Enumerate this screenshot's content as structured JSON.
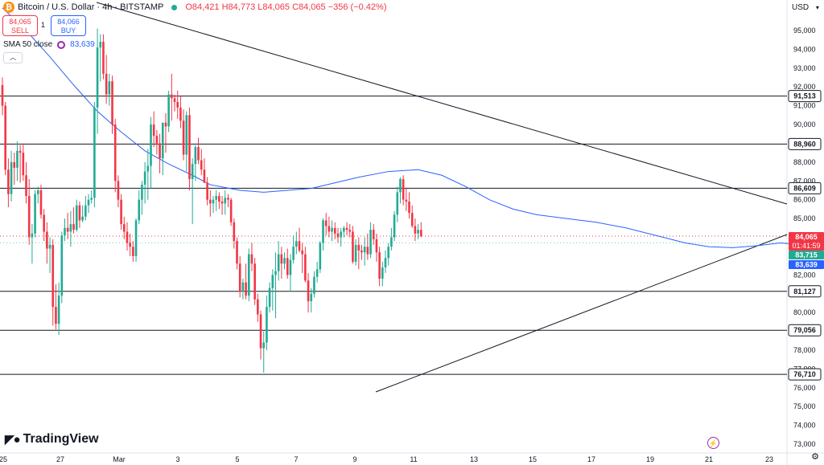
{
  "header": {
    "logo": "₿",
    "symbol": "Bitcoin / U.S. Dollar · 4h · BITSTAMP",
    "ohlc": "O84,421  H84,773  L84,065  C84,065  −356 (−0.42%)"
  },
  "trade": {
    "sell_price": "84,065",
    "sell_label": "SELL",
    "spread": "1",
    "buy_price": "84,066",
    "buy_label": "BUY"
  },
  "indicator": {
    "name": "SMA 50 close",
    "value": "83,639"
  },
  "currency": "USD",
  "brand": "TradingView",
  "icons": {
    "currency_menu": "chevron-down-icon",
    "settings": "gear-icon",
    "bolt": "lightning-icon",
    "collapse": "chevron-up-icon"
  },
  "colors": {
    "up": "#22ab94",
    "down": "#f23645",
    "sma": "#2962ff",
    "last_price": "#f23645",
    "sma_tag": "#2962ff",
    "green_tag": "#22ab94"
  },
  "chart_data": {
    "type": "candlestick",
    "ylim": [
      72600,
      96400
    ],
    "y_ticks": [
      73000,
      74000,
      75000,
      76000,
      77000,
      78000,
      79000,
      80000,
      81000,
      82000,
      83000,
      84000,
      85000,
      86000,
      87000,
      88000,
      89000,
      90000,
      91000,
      92000,
      93000,
      94000,
      95000
    ],
    "x_ticks": [
      "25",
      "27",
      "Mar",
      "3",
      "5",
      "7",
      "9",
      "11",
      "13",
      "15",
      "17",
      "19",
      "21",
      "23"
    ],
    "horizontal_levels": [
      {
        "value": 91513,
        "label": "91,513"
      },
      {
        "value": 88960,
        "label": "88,960"
      },
      {
        "value": 86609,
        "label": "86,609"
      },
      {
        "value": 81127,
        "label": "81,127"
      },
      {
        "value": 79056,
        "label": "79,056"
      },
      {
        "value": 76710,
        "label": "76,710"
      }
    ],
    "price_tags": [
      {
        "value": 84065,
        "label": "84,065",
        "sub": "01:41:59",
        "color": "#f23645"
      },
      {
        "value": 83715,
        "label": "83,715",
        "color": "#22ab94"
      },
      {
        "value": 83639,
        "label": "83,639",
        "color": "#2962ff"
      }
    ],
    "candles": [
      [
        92100,
        92500,
        90500,
        91000
      ],
      [
        91000,
        91200,
        87300,
        87600
      ],
      [
        87600,
        88200,
        85600,
        86300
      ],
      [
        86300,
        88600,
        85900,
        88000
      ],
      [
        88000,
        88500,
        86800,
        87700
      ],
      [
        87700,
        89100,
        87000,
        88600
      ],
      [
        88600,
        88900,
        86900,
        88500
      ],
      [
        88500,
        89000,
        87000,
        87300
      ],
      [
        87300,
        88000,
        85800,
        86200
      ],
      [
        86200,
        87100,
        83600,
        84000
      ],
      [
        84000,
        84700,
        82600,
        84200
      ],
      [
        84200,
        86500,
        84000,
        86300
      ],
      [
        86300,
        86700,
        85800,
        86500
      ],
      [
        86500,
        86800,
        85000,
        85200
      ],
      [
        85200,
        85500,
        83800,
        84300
      ],
      [
        84300,
        84800,
        82600,
        83400
      ],
      [
        83400,
        84000,
        82100,
        83600
      ],
      [
        83600,
        83900,
        79300,
        80300
      ],
      [
        80300,
        81500,
        79100,
        79400
      ],
      [
        79400,
        81600,
        78800,
        80900
      ],
      [
        80900,
        84300,
        80500,
        84100
      ],
      [
        84100,
        85000,
        83800,
        84500
      ],
      [
        84500,
        85300,
        83900,
        84300
      ],
      [
        84300,
        85400,
        83500,
        84700
      ],
      [
        84700,
        85600,
        84200,
        84400
      ],
      [
        84400,
        86000,
        84300,
        85700
      ],
      [
        85700,
        85900,
        84500,
        84900
      ],
      [
        84900,
        85700,
        84800,
        85100
      ],
      [
        85100,
        86200,
        84900,
        85700
      ],
      [
        85700,
        86300,
        85300,
        86000
      ],
      [
        86000,
        86500,
        85800,
        86100
      ],
      [
        86100,
        91200,
        85600,
        90900
      ],
      [
        90900,
        95100,
        89500,
        94100
      ],
      [
        94100,
        94800,
        92300,
        94400
      ],
      [
        94400,
        94800,
        92400,
        92700
      ],
      [
        92700,
        93700,
        91100,
        91600
      ],
      [
        91600,
        92700,
        91000,
        92300
      ],
      [
        92300,
        92600,
        89500,
        90000
      ],
      [
        90000,
        90300,
        86400,
        87000
      ],
      [
        87000,
        87300,
        85600,
        86000
      ],
      [
        86000,
        86300,
        84400,
        84700
      ],
      [
        84700,
        85100,
        83900,
        84300
      ],
      [
        84300,
        84800,
        83300,
        83700
      ],
      [
        83700,
        84200,
        83000,
        83500
      ],
      [
        83500,
        83800,
        82700,
        83000
      ],
      [
        83000,
        85000,
        82700,
        84900
      ],
      [
        84900,
        86500,
        84700,
        86000
      ],
      [
        86000,
        87000,
        85200,
        86800
      ],
      [
        86800,
        88000,
        85800,
        87500
      ],
      [
        87500,
        88700,
        86000,
        87800
      ],
      [
        87800,
        90400,
        86600,
        90000
      ],
      [
        90000,
        90700,
        88800,
        89400
      ],
      [
        89400,
        89700,
        88400,
        89000
      ],
      [
        89000,
        89500,
        87400,
        88200
      ],
      [
        88200,
        90100,
        87300,
        90100
      ],
      [
        90100,
        90600,
        88500,
        89900
      ],
      [
        89900,
        91800,
        89600,
        91600
      ],
      [
        91600,
        92700,
        90200,
        91400
      ],
      [
        91400,
        91600,
        90700,
        91200
      ],
      [
        91200,
        91800,
        90300,
        90900
      ],
      [
        90900,
        91500,
        89800,
        90200
      ],
      [
        90200,
        90800,
        88100,
        88400
      ],
      [
        88400,
        90700,
        87500,
        90500
      ],
      [
        90500,
        90900,
        86500,
        87100
      ],
      [
        87100,
        88200,
        84700,
        87900
      ],
      [
        87900,
        88900,
        87000,
        88800
      ],
      [
        88800,
        89300,
        87900,
        88100
      ],
      [
        88100,
        88700,
        87300,
        87600
      ],
      [
        87600,
        88200,
        86900,
        86900
      ],
      [
        86900,
        87200,
        85700,
        86000
      ],
      [
        86000,
        86500,
        85100,
        85800
      ],
      [
        85800,
        86200,
        85300,
        86000
      ],
      [
        86000,
        86500,
        85400,
        86200
      ],
      [
        86200,
        86400,
        85500,
        85900
      ],
      [
        85900,
        86200,
        85200,
        85800
      ],
      [
        85800,
        86500,
        85200,
        86100
      ],
      [
        86100,
        86300,
        85600,
        86000
      ],
      [
        86000,
        86100,
        84600,
        84800
      ],
      [
        84800,
        85000,
        83400,
        83800
      ],
      [
        83800,
        84000,
        82300,
        82600
      ],
      [
        82600,
        83000,
        80800,
        81100
      ],
      [
        81100,
        81800,
        80700,
        81600
      ],
      [
        81600,
        82600,
        80700,
        80900
      ],
      [
        80900,
        83400,
        80600,
        83100
      ],
      [
        83100,
        83700,
        82200,
        82600
      ],
      [
        82600,
        82900,
        80400,
        80700
      ],
      [
        80700,
        81000,
        79500,
        79900
      ],
      [
        79900,
        80100,
        77500,
        78100
      ],
      [
        78100,
        79000,
        76800,
        78400
      ],
      [
        78400,
        80900,
        78000,
        80300
      ],
      [
        80300,
        81600,
        80000,
        81300
      ],
      [
        81300,
        82300,
        80100,
        82000
      ],
      [
        82000,
        83200,
        79700,
        82200
      ],
      [
        82200,
        83800,
        81700,
        83100
      ],
      [
        83100,
        83500,
        81800,
        82600
      ],
      [
        82600,
        83200,
        82300,
        82900
      ],
      [
        82900,
        83400,
        81800,
        82000
      ],
      [
        82000,
        83100,
        81100,
        82800
      ],
      [
        82800,
        84100,
        82600,
        83500
      ],
      [
        83500,
        84300,
        83100,
        83800
      ],
      [
        83800,
        84500,
        83200,
        83300
      ],
      [
        83300,
        83700,
        82100,
        83100
      ],
      [
        83100,
        83500,
        81600,
        81700
      ],
      [
        81700,
        82100,
        80000,
        80600
      ],
      [
        80600,
        81300,
        80000,
        81000
      ],
      [
        81000,
        82200,
        80800,
        81900
      ],
      [
        81900,
        82700,
        81600,
        82300
      ],
      [
        82300,
        83800,
        82100,
        83700
      ],
      [
        83700,
        85000,
        83300,
        84900
      ],
      [
        84900,
        85300,
        84100,
        84600
      ],
      [
        84600,
        85100,
        84000,
        84300
      ],
      [
        84300,
        84900,
        83800,
        84500
      ],
      [
        84500,
        84800,
        83900,
        84200
      ],
      [
        84200,
        84500,
        83700,
        84000
      ],
      [
        84000,
        84500,
        83500,
        84300
      ],
      [
        84300,
        84600,
        84000,
        84500
      ],
      [
        84500,
        84800,
        84100,
        84400
      ],
      [
        84400,
        84700,
        84000,
        84300
      ],
      [
        84300,
        84600,
        82600,
        82700
      ],
      [
        82700,
        83900,
        82500,
        83600
      ],
      [
        83600,
        84000,
        82300,
        83300
      ],
      [
        83300,
        83600,
        82800,
        83200
      ],
      [
        83200,
        84000,
        82500,
        83500
      ],
      [
        83500,
        84200,
        82800,
        83100
      ],
      [
        83100,
        84800,
        82900,
        84400
      ],
      [
        84400,
        84700,
        83600,
        83900
      ],
      [
        83900,
        84200,
        82700,
        83200
      ],
      [
        83200,
        83500,
        81400,
        81800
      ],
      [
        81800,
        82700,
        81400,
        82400
      ],
      [
        82400,
        83300,
        82100,
        82900
      ],
      [
        82900,
        83700,
        82500,
        83500
      ],
      [
        83500,
        84500,
        83300,
        84000
      ],
      [
        84000,
        85400,
        83800,
        85200
      ],
      [
        85200,
        86700,
        84800,
        86400
      ],
      [
        86400,
        87200,
        85800,
        87100
      ],
      [
        87100,
        87300,
        85700,
        86000
      ],
      [
        86000,
        86600,
        85400,
        85900
      ],
      [
        85900,
        86400,
        85000,
        85300
      ],
      [
        85300,
        85700,
        84500,
        84600
      ],
      [
        84600,
        85000,
        83800,
        84200
      ],
      [
        84200,
        84700,
        83900,
        84400
      ],
      [
        84400,
        84800,
        84000,
        84065
      ]
    ],
    "sma50": [
      [
        0,
        96200
      ],
      [
        8,
        95000
      ],
      [
        16,
        93600
      ],
      [
        24,
        92100
      ],
      [
        32,
        90700
      ],
      [
        40,
        89600
      ],
      [
        48,
        88600
      ],
      [
        56,
        87900
      ],
      [
        64,
        87300
      ],
      [
        70,
        86800
      ],
      [
        80,
        86500
      ],
      [
        88,
        86400
      ],
      [
        96,
        86500
      ],
      [
        104,
        86600
      ],
      [
        112,
        86900
      ],
      [
        120,
        87200
      ],
      [
        130,
        87500
      ],
      [
        140,
        87600
      ],
      [
        148,
        87300
      ],
      [
        156,
        86700
      ],
      [
        164,
        86000
      ],
      [
        172,
        85500
      ],
      [
        180,
        85200
      ],
      [
        190,
        85000
      ],
      [
        200,
        84800
      ],
      [
        210,
        84500
      ],
      [
        220,
        84100
      ],
      [
        230,
        83700
      ],
      [
        238,
        83500
      ],
      [
        246,
        83450
      ],
      [
        254,
        83550
      ],
      [
        262,
        83700
      ],
      [
        270,
        83600
      ]
    ]
  }
}
